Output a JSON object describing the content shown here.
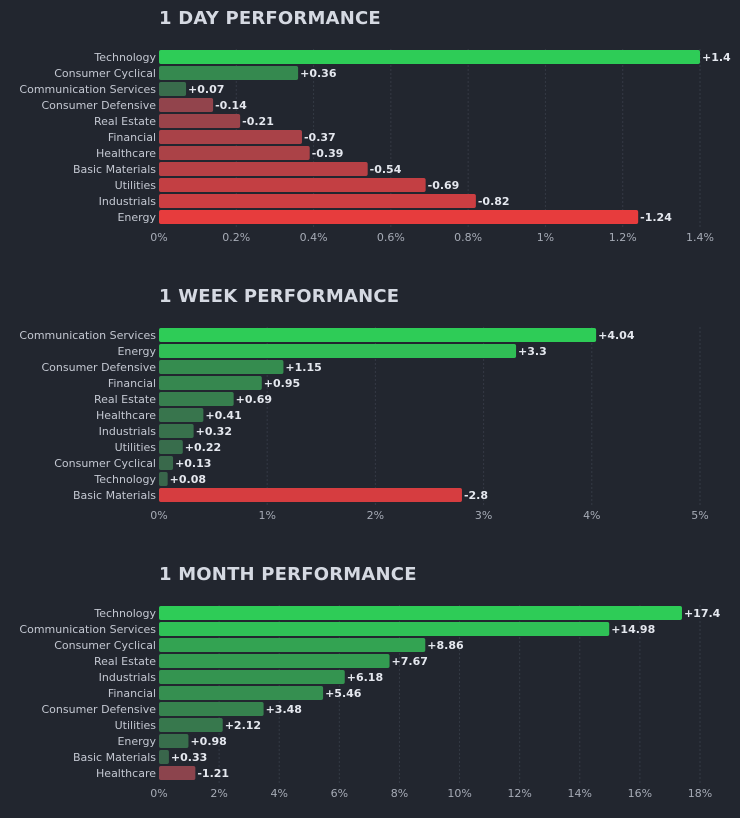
{
  "colors": {
    "background": "#22262f",
    "positive_strong": "#2ecc57",
    "negative_strong": "#f13b3b",
    "positive_weak": "#3a5f4a",
    "negative_weak": "#7a4650"
  },
  "chart_data": [
    {
      "type": "bar",
      "orientation": "horizontal",
      "title": "1 DAY PERFORMANCE",
      "categories": [
        "Technology",
        "Consumer Cyclical",
        "Communication Services",
        "Consumer Defensive",
        "Real Estate",
        "Financial",
        "Healthcare",
        "Basic Materials",
        "Utilities",
        "Industrials",
        "Energy"
      ],
      "values": [
        1.4,
        0.36,
        0.07,
        -0.14,
        -0.21,
        -0.37,
        -0.39,
        -0.54,
        -0.69,
        -0.82,
        -1.24
      ],
      "value_labels": [
        "+1.4",
        "+0.36",
        "+0.07",
        "-0.14",
        "-0.21",
        "-0.37",
        "-0.39",
        "-0.54",
        "-0.69",
        "-0.82",
        "-1.24"
      ],
      "xlim": [
        0,
        1.4
      ],
      "ticks": [
        0,
        0.2,
        0.4,
        0.6,
        0.8,
        1.0,
        1.2,
        1.4
      ],
      "tick_labels": [
        "0%",
        "0.2%",
        "0.4%",
        "0.6%",
        "0.8%",
        "1%",
        "1.2%",
        "1.4%"
      ],
      "scale": "absolute value",
      "grid": true
    },
    {
      "type": "bar",
      "orientation": "horizontal",
      "title": "1 WEEK PERFORMANCE",
      "categories": [
        "Communication Services",
        "Energy",
        "Consumer Defensive",
        "Financial",
        "Real Estate",
        "Healthcare",
        "Industrials",
        "Utilities",
        "Consumer Cyclical",
        "Technology",
        "Basic Materials"
      ],
      "values": [
        4.04,
        3.3,
        1.15,
        0.95,
        0.69,
        0.41,
        0.32,
        0.22,
        0.13,
        0.08,
        -2.8
      ],
      "value_labels": [
        "+4.04",
        "+3.3",
        "+1.15",
        "+0.95",
        "+0.69",
        "+0.41",
        "+0.32",
        "+0.22",
        "+0.13",
        "+0.08",
        "-2.8"
      ],
      "xlim": [
        0,
        5
      ],
      "ticks": [
        0,
        1,
        2,
        3,
        4,
        5
      ],
      "tick_labels": [
        "0%",
        "1%",
        "2%",
        "3%",
        "4%",
        "5%"
      ],
      "scale": "absolute value",
      "grid": true
    },
    {
      "type": "bar",
      "orientation": "horizontal",
      "title": "1 MONTH PERFORMANCE",
      "categories": [
        "Technology",
        "Communication Services",
        "Consumer Cyclical",
        "Real Estate",
        "Industrials",
        "Financial",
        "Consumer Defensive",
        "Utilities",
        "Energy",
        "Basic Materials",
        "Healthcare"
      ],
      "values": [
        17.4,
        14.98,
        8.86,
        7.67,
        6.18,
        5.46,
        3.48,
        2.12,
        0.98,
        0.33,
        -1.21
      ],
      "value_labels": [
        "+17.4",
        "+14.98",
        "+8.86",
        "+7.67",
        "+6.18",
        "+5.46",
        "+3.48",
        "+2.12",
        "+0.98",
        "+0.33",
        "-1.21"
      ],
      "xlim": [
        0,
        18
      ],
      "ticks": [
        0,
        2,
        4,
        6,
        8,
        10,
        12,
        14,
        16,
        18
      ],
      "tick_labels": [
        "0%",
        "2%",
        "4%",
        "6%",
        "8%",
        "10%",
        "12%",
        "14%",
        "16%",
        "18%"
      ],
      "scale": "absolute value",
      "grid": true
    }
  ]
}
